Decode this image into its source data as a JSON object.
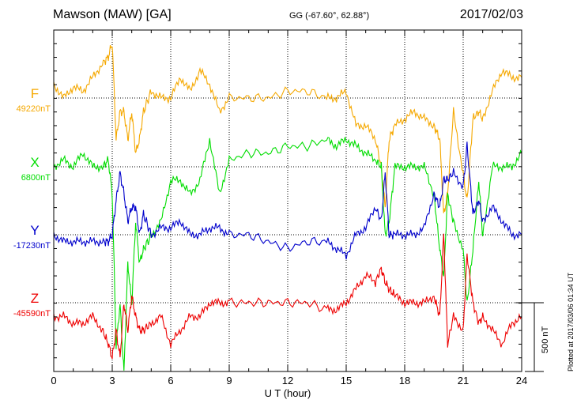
{
  "header": {
    "station": "Mawson (MAW)  [GA]",
    "coords": "GG (-67.60°,  62.88°)",
    "date": "2017/02/03"
  },
  "side_note": "Plotted at 2017/03/06 01:34  UT",
  "colors": {
    "F": "#f5a800",
    "X": "#00dd00",
    "Y": "#0000cc",
    "Z": "#ee0000"
  },
  "chart_data": {
    "type": "line",
    "title": "Mawson (MAW)  [GA]",
    "xlabel": "U T (hour)",
    "xlim": [
      0,
      24
    ],
    "xticks": [
      0,
      3,
      6,
      9,
      12,
      15,
      18,
      21,
      24
    ],
    "tick_labels": [
      "0",
      "3",
      "6",
      "9",
      "12",
      "15",
      "18",
      "21",
      "24"
    ],
    "scale_bar": {
      "label": "500 nT",
      "value_nT": 500
    },
    "grid": "dotted",
    "x": [
      0,
      0.5,
      1,
      1.5,
      2,
      2.5,
      2.8,
      3,
      3.2,
      3.4,
      3.6,
      3.8,
      4,
      4.2,
      4.4,
      4.6,
      5,
      5.5,
      6,
      6.5,
      7,
      7.5,
      8,
      8.5,
      9,
      10,
      11,
      12,
      13,
      14,
      14.5,
      15,
      15.5,
      16,
      16.5,
      16.8,
      17,
      17.2,
      17.5,
      18,
      18.5,
      19,
      19.5,
      19.8,
      20,
      20.2,
      20.5,
      21,
      21.2,
      21.5,
      21.8,
      22,
      22.5,
      23,
      23.5,
      24
    ],
    "series": [
      {
        "name": "F",
        "label": "F",
        "baseline_label": "49220nT",
        "baseline_nT": 49220,
        "values": [
          100,
          0,
          80,
          50,
          150,
          250,
          300,
          400,
          -300,
          -100,
          -100,
          -300,
          -100,
          -400,
          -300,
          -100,
          50,
          0,
          0,
          150,
          50,
          200,
          100,
          -100,
          0,
          0,
          0,
          50,
          50,
          0,
          0,
          50,
          -200,
          -200,
          -300,
          -500,
          -800,
          -300,
          -200,
          -150,
          -100,
          -150,
          -200,
          -300,
          -850,
          -700,
          -100,
          -550,
          -750,
          -150,
          -100,
          -150,
          50,
          200,
          150,
          150
        ]
      },
      {
        "name": "X",
        "label": "X",
        "baseline_label": "6800nT",
        "baseline_nT": 6800,
        "values": [
          0,
          50,
          0,
          100,
          0,
          0,
          50,
          -200,
          -1300,
          -1000,
          -1500,
          -700,
          -1000,
          -400,
          -700,
          -600,
          -500,
          -400,
          -100,
          -100,
          -200,
          -100,
          200,
          -200,
          50,
          100,
          100,
          150,
          150,
          200,
          150,
          200,
          150,
          100,
          50,
          0,
          -500,
          -400,
          0,
          0,
          0,
          0,
          -200,
          -600,
          -800,
          -200,
          -400,
          -600,
          -1000,
          -600,
          -100,
          -500,
          0,
          0,
          0,
          100
        ]
      },
      {
        "name": "Y",
        "label": "Y",
        "baseline_label": "-17230nT",
        "baseline_nT": -17230,
        "values": [
          0,
          -50,
          -50,
          -50,
          -50,
          -50,
          -50,
          0,
          250,
          450,
          300,
          100,
          200,
          200,
          0,
          150,
          0,
          50,
          50,
          100,
          0,
          0,
          50,
          50,
          0,
          0,
          -50,
          -100,
          -50,
          -50,
          -100,
          -150,
          0,
          50,
          200,
          100,
          450,
          0,
          0,
          0,
          0,
          50,
          300,
          200,
          400,
          400,
          450,
          350,
          650,
          150,
          250,
          100,
          200,
          100,
          0,
          0
        ]
      },
      {
        "name": "Z",
        "label": "Z",
        "baseline_label": "-45590nT",
        "baseline_nT": -45590,
        "values": [
          -100,
          -100,
          -150,
          -150,
          -100,
          -200,
          -300,
          -400,
          -200,
          -400,
          0,
          -200,
          50,
          -100,
          -200,
          -200,
          -150,
          -100,
          -300,
          -200,
          -100,
          -100,
          0,
          0,
          0,
          0,
          0,
          0,
          0,
          -50,
          -50,
          0,
          100,
          200,
          150,
          250,
          150,
          100,
          50,
          0,
          0,
          0,
          50,
          -100,
          500,
          -300,
          -100,
          -200,
          350,
          0,
          -150,
          -100,
          -200,
          -300,
          -150,
          -100
        ]
      }
    ]
  }
}
